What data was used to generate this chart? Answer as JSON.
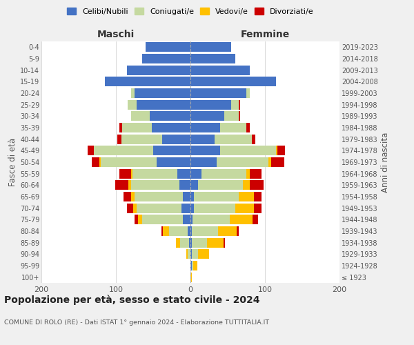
{
  "age_groups": [
    "100+",
    "95-99",
    "90-94",
    "85-89",
    "80-84",
    "75-79",
    "70-74",
    "65-69",
    "60-64",
    "55-59",
    "50-54",
    "45-49",
    "40-44",
    "35-39",
    "30-34",
    "25-29",
    "20-24",
    "15-19",
    "10-14",
    "5-9",
    "0-4"
  ],
  "birth_years": [
    "≤ 1923",
    "1924-1928",
    "1929-1933",
    "1934-1938",
    "1939-1943",
    "1944-1948",
    "1949-1953",
    "1954-1958",
    "1959-1963",
    "1964-1968",
    "1969-1973",
    "1974-1978",
    "1979-1983",
    "1984-1988",
    "1989-1993",
    "1994-1998",
    "1999-2003",
    "2004-2008",
    "2009-2013",
    "2014-2018",
    "2019-2023"
  ],
  "colors": {
    "celibi": "#4472c4",
    "coniugati": "#c5d9a0",
    "vedovi": "#ffc000",
    "divorziati": "#cc0000"
  },
  "maschi": {
    "celibi": [
      0,
      0,
      0,
      2,
      4,
      10,
      12,
      10,
      15,
      18,
      45,
      50,
      38,
      52,
      55,
      72,
      75,
      115,
      85,
      65,
      60
    ],
    "coniugati": [
      0,
      0,
      4,
      12,
      25,
      55,
      60,
      65,
      65,
      60,
      75,
      80,
      55,
      40,
      25,
      12,
      5,
      0,
      0,
      0,
      0
    ],
    "vedovi": [
      0,
      0,
      2,
      5,
      8,
      5,
      5,
      5,
      3,
      2,
      2,
      0,
      0,
      0,
      0,
      0,
      0,
      0,
      0,
      0,
      0
    ],
    "divorziati": [
      0,
      0,
      0,
      0,
      2,
      5,
      8,
      10,
      18,
      15,
      10,
      8,
      5,
      3,
      0,
      0,
      0,
      0,
      0,
      0,
      0
    ]
  },
  "femmine": {
    "celibi": [
      0,
      2,
      2,
      2,
      2,
      3,
      5,
      5,
      10,
      15,
      35,
      40,
      32,
      40,
      45,
      55,
      75,
      115,
      80,
      60,
      55
    ],
    "coniugati": [
      0,
      2,
      8,
      20,
      35,
      50,
      55,
      60,
      60,
      60,
      70,
      75,
      50,
      35,
      20,
      10,
      5,
      0,
      0,
      0,
      0
    ],
    "vedovi": [
      2,
      5,
      15,
      22,
      25,
      30,
      25,
      20,
      10,
      5,
      3,
      2,
      0,
      0,
      0,
      0,
      0,
      0,
      0,
      0,
      0
    ],
    "divorziati": [
      0,
      0,
      0,
      2,
      3,
      8,
      10,
      10,
      18,
      15,
      18,
      10,
      5,
      5,
      2,
      2,
      0,
      0,
      0,
      0,
      0
    ]
  },
  "title": "Popolazione per età, sesso e stato civile - 2024",
  "subtitle": "COMUNE DI ROLO (RE) - Dati ISTAT 1° gennaio 2024 - Elaborazione TUTTITALIA.IT",
  "ylabel_left": "Fasce di età",
  "ylabel_right": "Anni di nascita",
  "xlabel_maschi": "Maschi",
  "xlabel_femmine": "Femmine",
  "xlim": 200,
  "legend_labels": [
    "Celibi/Nubili",
    "Coniugati/e",
    "Vedovi/e",
    "Divorziati/e"
  ],
  "background_color": "#f0f0f0",
  "plot_bg_color": "#ffffff"
}
